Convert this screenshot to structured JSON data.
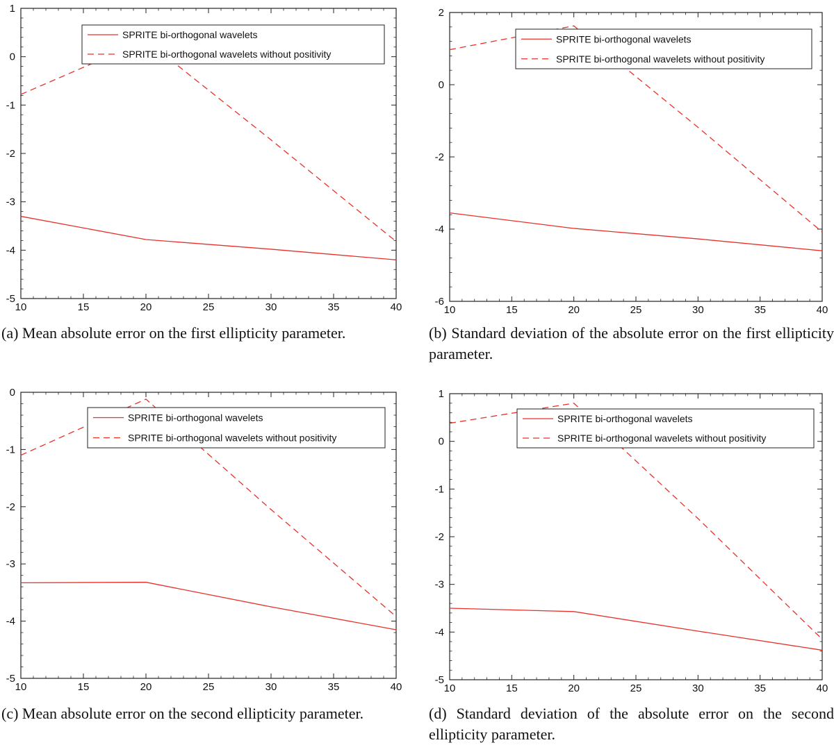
{
  "chart_data": [
    {
      "id": "a",
      "type": "line",
      "title": "",
      "xlabel": "",
      "ylabel": "",
      "xlim": [
        10,
        40
      ],
      "ylim": [
        -5,
        1
      ],
      "xticks": [
        "10",
        "15",
        "20",
        "25",
        "30",
        "35",
        "40"
      ],
      "yticks": [
        "1",
        "0",
        "-1",
        "-2",
        "-3",
        "-4",
        "-5"
      ],
      "series": [
        {
          "name": "SPRITE bi-orthogonal wavelets",
          "style": "solid",
          "x": [
            10,
            20,
            30,
            40
          ],
          "values": [
            -3.3,
            -3.78,
            -3.98,
            -4.2
          ]
        },
        {
          "name": "SPRITE bi-orthogonal wavelets without positivity",
          "style": "dashed",
          "x": [
            10,
            20,
            30,
            40
          ],
          "values": [
            -0.78,
            0.34,
            -1.72,
            -3.82
          ]
        }
      ],
      "legend": "top-right",
      "caption": "(a) Mean absolute error on the first ellipticity parameter."
    },
    {
      "id": "b",
      "type": "line",
      "title": "",
      "xlabel": "",
      "ylabel": "",
      "xlim": [
        10,
        40
      ],
      "ylim": [
        -6,
        2
      ],
      "xticks": [
        "10",
        "15",
        "20",
        "25",
        "30",
        "35",
        "40"
      ],
      "yticks": [
        "2",
        "0",
        "-2",
        "-4",
        "-6"
      ],
      "series": [
        {
          "name": "SPRITE bi-orthogonal wavelets",
          "style": "solid",
          "x": [
            10,
            20,
            30,
            40
          ],
          "values": [
            -3.55,
            -3.98,
            -4.27,
            -4.6
          ]
        },
        {
          "name": "SPRITE bi-orthogonal wavelets without positivity",
          "style": "dashed",
          "x": [
            10,
            20,
            30,
            40
          ],
          "values": [
            0.97,
            1.63,
            -1.18,
            -4.08
          ]
        }
      ],
      "legend": "top-right",
      "caption": "(b) Standard deviation of the absolute error on the first ellipticity parameter."
    },
    {
      "id": "c",
      "type": "line",
      "title": "",
      "xlabel": "",
      "ylabel": "",
      "xlim": [
        10,
        40
      ],
      "ylim": [
        -5,
        0
      ],
      "xticks": [
        "10",
        "15",
        "20",
        "25",
        "30",
        "35",
        "40"
      ],
      "yticks": [
        "0",
        "-1",
        "-2",
        "-3",
        "-4",
        "-5"
      ],
      "series": [
        {
          "name": "SPRITE bi-orthogonal wavelets",
          "style": "solid",
          "x": [
            10,
            20,
            30,
            40
          ],
          "values": [
            -3.33,
            -3.32,
            -3.75,
            -4.15
          ]
        },
        {
          "name": "SPRITE bi-orthogonal wavelets without positivity",
          "style": "dashed",
          "x": [
            10,
            20,
            30,
            40
          ],
          "values": [
            -1.1,
            -0.12,
            -2.05,
            -3.92
          ]
        }
      ],
      "legend": "top-right",
      "caption": "(c) Mean absolute error on the second ellipticity parameter."
    },
    {
      "id": "d",
      "type": "line",
      "title": "",
      "xlabel": "",
      "ylabel": "",
      "xlim": [
        10,
        40
      ],
      "ylim": [
        -5,
        1
      ],
      "xticks": [
        "10",
        "15",
        "20",
        "25",
        "30",
        "35",
        "40"
      ],
      "yticks": [
        "1",
        "0",
        "-1",
        "-2",
        "-3",
        "-4",
        "-5"
      ],
      "series": [
        {
          "name": "SPRITE bi-orthogonal wavelets",
          "style": "solid",
          "x": [
            10,
            20,
            30,
            40
          ],
          "values": [
            -3.5,
            -3.57,
            -3.98,
            -4.38
          ]
        },
        {
          "name": "SPRITE bi-orthogonal wavelets without positivity",
          "style": "dashed",
          "x": [
            10,
            20,
            30,
            40
          ],
          "values": [
            0.38,
            0.8,
            -1.62,
            -4.15
          ]
        }
      ],
      "legend": "top-right",
      "caption": "(d) Standard deviation of the absolute error on the second ellipticity parameter."
    }
  ],
  "colors": {
    "line": "#e8302a",
    "axis": "#222222"
  }
}
